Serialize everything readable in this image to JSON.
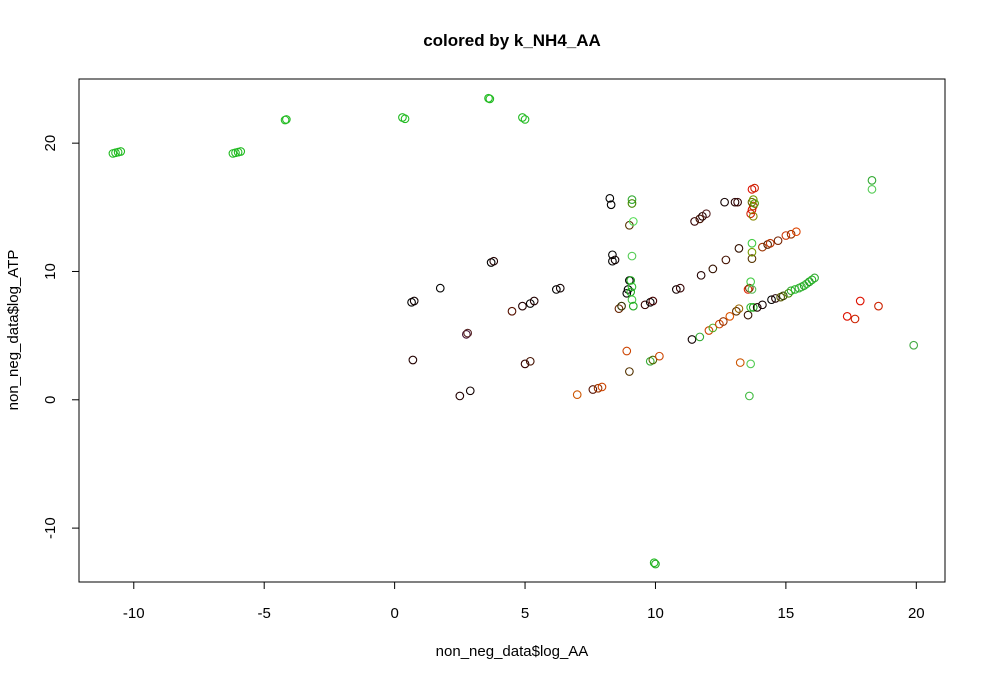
{
  "chart_data": {
    "type": "scatter",
    "title": "colored by k_NH4_AA",
    "xlabel": "non_neg_data$log_AA",
    "ylabel": "non_neg_data$log_ATP",
    "xlim": [
      -12.1,
      21.1
    ],
    "ylim": [
      -14.2,
      25.0
    ],
    "x_ticks": [
      -10,
      -5,
      0,
      5,
      10,
      15,
      20
    ],
    "y_ticks": [
      -10,
      0,
      10,
      20
    ],
    "x_tick_labels": [
      "-10",
      "-5",
      "0",
      "5",
      "10",
      "15",
      "20"
    ],
    "y_tick_labels": [
      "-10",
      "0",
      "10",
      "20"
    ],
    "marker": "open-circle",
    "grid": false,
    "legend": "none",
    "points": [
      {
        "x": -10.8,
        "y": 19.2,
        "color": "#22bb22"
      },
      {
        "x": -10.7,
        "y": 19.25,
        "color": "#22bb22"
      },
      {
        "x": -10.6,
        "y": 19.3,
        "color": "#22bb22"
      },
      {
        "x": -10.5,
        "y": 19.35,
        "color": "#22bb22"
      },
      {
        "x": -6.2,
        "y": 19.2,
        "color": "#22bb22"
      },
      {
        "x": -6.1,
        "y": 19.25,
        "color": "#22bb22"
      },
      {
        "x": -6.0,
        "y": 19.3,
        "color": "#22bb22"
      },
      {
        "x": -5.9,
        "y": 19.35,
        "color": "#22bb22"
      },
      {
        "x": -4.2,
        "y": 21.8,
        "color": "#22bb22"
      },
      {
        "x": -4.15,
        "y": 21.85,
        "color": "#22bb22"
      },
      {
        "x": 0.3,
        "y": 22.0,
        "color": "#22bb22"
      },
      {
        "x": 0.4,
        "y": 21.9,
        "color": "#22bb22"
      },
      {
        "x": 3.6,
        "y": 23.5,
        "color": "#22bb22"
      },
      {
        "x": 3.65,
        "y": 23.45,
        "color": "#22bb22"
      },
      {
        "x": 4.9,
        "y": 22.0,
        "color": "#22bb22"
      },
      {
        "x": 5.0,
        "y": 21.85,
        "color": "#22bb22"
      },
      {
        "x": 0.65,
        "y": 7.6,
        "color": "#000000"
      },
      {
        "x": 0.75,
        "y": 7.7,
        "color": "#110000"
      },
      {
        "x": 0.7,
        "y": 3.1,
        "color": "#220000"
      },
      {
        "x": 1.75,
        "y": 8.7,
        "color": "#000000"
      },
      {
        "x": 2.5,
        "y": 0.3,
        "color": "#220000"
      },
      {
        "x": 2.75,
        "y": 5.1,
        "color": "#441133"
      },
      {
        "x": 2.8,
        "y": 5.2,
        "color": "#552222"
      },
      {
        "x": 2.9,
        "y": 0.7,
        "color": "#110000"
      },
      {
        "x": 3.7,
        "y": 10.7,
        "color": "#000000"
      },
      {
        "x": 3.8,
        "y": 10.8,
        "color": "#220000"
      },
      {
        "x": 4.5,
        "y": 6.9,
        "color": "#551100"
      },
      {
        "x": 4.9,
        "y": 7.3,
        "color": "#220000"
      },
      {
        "x": 5.0,
        "y": 2.8,
        "color": "#330000"
      },
      {
        "x": 5.2,
        "y": 3.0,
        "color": "#441100"
      },
      {
        "x": 5.2,
        "y": 7.5,
        "color": "#000000"
      },
      {
        "x": 5.35,
        "y": 7.7,
        "color": "#220000"
      },
      {
        "x": 6.2,
        "y": 8.6,
        "color": "#000000"
      },
      {
        "x": 6.35,
        "y": 8.7,
        "color": "#110000"
      },
      {
        "x": 7.0,
        "y": 0.4,
        "color": "#cc5500"
      },
      {
        "x": 7.6,
        "y": 0.8,
        "color": "#551100"
      },
      {
        "x": 7.8,
        "y": 0.9,
        "color": "#993300"
      },
      {
        "x": 7.95,
        "y": 1.0,
        "color": "#cc4400"
      },
      {
        "x": 8.25,
        "y": 15.7,
        "color": "#000000"
      },
      {
        "x": 8.3,
        "y": 15.2,
        "color": "#000000"
      },
      {
        "x": 8.35,
        "y": 11.3,
        "color": "#000000"
      },
      {
        "x": 8.35,
        "y": 10.8,
        "color": "#000000"
      },
      {
        "x": 8.45,
        "y": 10.9,
        "color": "#110000"
      },
      {
        "x": 8.6,
        "y": 7.1,
        "color": "#662200"
      },
      {
        "x": 8.7,
        "y": 7.3,
        "color": "#333300"
      },
      {
        "x": 8.9,
        "y": 8.3,
        "color": "#000000"
      },
      {
        "x": 8.95,
        "y": 8.6,
        "color": "#000000"
      },
      {
        "x": 9.0,
        "y": 9.3,
        "color": "#000000"
      },
      {
        "x": 8.9,
        "y": 3.8,
        "color": "#cc4400"
      },
      {
        "x": 9.0,
        "y": 2.2,
        "color": "#553300"
      },
      {
        "x": 9.0,
        "y": 13.6,
        "color": "#553300"
      },
      {
        "x": 9.1,
        "y": 15.6,
        "color": "#33aa33"
      },
      {
        "x": 9.1,
        "y": 15.3,
        "color": "#448800"
      },
      {
        "x": 9.15,
        "y": 13.9,
        "color": "#55dd55"
      },
      {
        "x": 9.1,
        "y": 11.2,
        "color": "#55cc55"
      },
      {
        "x": 9.05,
        "y": 9.3,
        "color": "#22aa22"
      },
      {
        "x": 9.1,
        "y": 8.8,
        "color": "#33bb33"
      },
      {
        "x": 9.05,
        "y": 8.4,
        "color": "#22aa22"
      },
      {
        "x": 9.1,
        "y": 7.8,
        "color": "#44cc44"
      },
      {
        "x": 9.15,
        "y": 7.3,
        "color": "#22aa22"
      },
      {
        "x": 9.6,
        "y": 7.4,
        "color": "#330000"
      },
      {
        "x": 9.8,
        "y": 7.6,
        "color": "#000000"
      },
      {
        "x": 9.9,
        "y": 7.7,
        "color": "#440000"
      },
      {
        "x": 9.8,
        "y": 3.0,
        "color": "#33aa33"
      },
      {
        "x": 9.9,
        "y": 3.1,
        "color": "#556600"
      },
      {
        "x": 10.15,
        "y": 3.4,
        "color": "#cc4400"
      },
      {
        "x": 9.95,
        "y": -12.7,
        "color": "#22bb22"
      },
      {
        "x": 10.0,
        "y": -12.8,
        "color": "#22aa22"
      },
      {
        "x": 10.8,
        "y": 8.6,
        "color": "#110000"
      },
      {
        "x": 10.95,
        "y": 8.7,
        "color": "#330000"
      },
      {
        "x": 11.4,
        "y": 4.7,
        "color": "#110000"
      },
      {
        "x": 11.7,
        "y": 4.9,
        "color": "#33aa33"
      },
      {
        "x": 11.5,
        "y": 13.9,
        "color": "#330000"
      },
      {
        "x": 11.7,
        "y": 14.1,
        "color": "#441100"
      },
      {
        "x": 11.8,
        "y": 14.3,
        "color": "#220000"
      },
      {
        "x": 11.95,
        "y": 14.5,
        "color": "#552222"
      },
      {
        "x": 11.75,
        "y": 9.7,
        "color": "#220000"
      },
      {
        "x": 12.2,
        "y": 10.2,
        "color": "#331100"
      },
      {
        "x": 12.7,
        "y": 10.9,
        "color": "#441100"
      },
      {
        "x": 12.05,
        "y": 5.4,
        "color": "#cc4400"
      },
      {
        "x": 12.2,
        "y": 5.6,
        "color": "#55aa22"
      },
      {
        "x": 12.45,
        "y": 5.9,
        "color": "#cc4400"
      },
      {
        "x": 12.6,
        "y": 6.1,
        "color": "#993300"
      },
      {
        "x": 12.85,
        "y": 6.5,
        "color": "#dd5500"
      },
      {
        "x": 13.1,
        "y": 6.9,
        "color": "#663300"
      },
      {
        "x": 13.2,
        "y": 7.1,
        "color": "#996600"
      },
      {
        "x": 12.65,
        "y": 15.4,
        "color": "#110000"
      },
      {
        "x": 13.05,
        "y": 15.4,
        "color": "#220000"
      },
      {
        "x": 13.15,
        "y": 15.4,
        "color": "#330000"
      },
      {
        "x": 13.2,
        "y": 11.8,
        "color": "#331100"
      },
      {
        "x": 13.25,
        "y": 2.9,
        "color": "#cc5500"
      },
      {
        "x": 13.55,
        "y": 6.6,
        "color": "#331100"
      },
      {
        "x": 13.55,
        "y": 8.6,
        "color": "#dd2200"
      },
      {
        "x": 13.6,
        "y": 8.7,
        "color": "#773300"
      },
      {
        "x": 13.65,
        "y": 9.2,
        "color": "#44cc44"
      },
      {
        "x": 13.7,
        "y": 8.6,
        "color": "#55bb55"
      },
      {
        "x": 13.65,
        "y": 7.2,
        "color": "#33bb33"
      },
      {
        "x": 13.75,
        "y": 7.2,
        "color": "#22aa22"
      },
      {
        "x": 13.65,
        "y": 2.8,
        "color": "#55cc55"
      },
      {
        "x": 13.6,
        "y": 0.3,
        "color": "#44bb44"
      },
      {
        "x": 13.7,
        "y": 11.0,
        "color": "#553300"
      },
      {
        "x": 13.7,
        "y": 11.5,
        "color": "#779900"
      },
      {
        "x": 13.7,
        "y": 12.2,
        "color": "#44cc44"
      },
      {
        "x": 13.65,
        "y": 14.5,
        "color": "#cc2200"
      },
      {
        "x": 13.7,
        "y": 14.8,
        "color": "#dd1100"
      },
      {
        "x": 13.75,
        "y": 15.1,
        "color": "#bb3300"
      },
      {
        "x": 13.7,
        "y": 15.4,
        "color": "#666600"
      },
      {
        "x": 13.75,
        "y": 15.6,
        "color": "#779900"
      },
      {
        "x": 13.8,
        "y": 15.3,
        "color": "#559900"
      },
      {
        "x": 13.75,
        "y": 14.3,
        "color": "#888800"
      },
      {
        "x": 13.7,
        "y": 16.4,
        "color": "#dd1100"
      },
      {
        "x": 13.8,
        "y": 16.5,
        "color": "#cc2200"
      },
      {
        "x": 13.9,
        "y": 7.2,
        "color": "#220000"
      },
      {
        "x": 14.1,
        "y": 7.4,
        "color": "#110000"
      },
      {
        "x": 14.1,
        "y": 11.9,
        "color": "#993300"
      },
      {
        "x": 14.3,
        "y": 12.1,
        "color": "#552200"
      },
      {
        "x": 14.4,
        "y": 12.2,
        "color": "#bb3300"
      },
      {
        "x": 14.7,
        "y": 12.4,
        "color": "#772200"
      },
      {
        "x": 14.45,
        "y": 7.8,
        "color": "#000000"
      },
      {
        "x": 14.6,
        "y": 7.9,
        "color": "#220000"
      },
      {
        "x": 14.8,
        "y": 8.0,
        "color": "#555500"
      },
      {
        "x": 14.9,
        "y": 8.1,
        "color": "#334400"
      },
      {
        "x": 15.0,
        "y": 12.8,
        "color": "#cc3300"
      },
      {
        "x": 15.2,
        "y": 12.9,
        "color": "#993300"
      },
      {
        "x": 15.4,
        "y": 13.1,
        "color": "#dd4400"
      },
      {
        "x": 15.1,
        "y": 8.3,
        "color": "#448800"
      },
      {
        "x": 15.2,
        "y": 8.5,
        "color": "#33aa33"
      },
      {
        "x": 15.35,
        "y": 8.6,
        "color": "#22bb22"
      },
      {
        "x": 15.5,
        "y": 8.7,
        "color": "#33aa33"
      },
      {
        "x": 15.6,
        "y": 8.8,
        "color": "#44bb44"
      },
      {
        "x": 15.7,
        "y": 8.9,
        "color": "#22aa22"
      },
      {
        "x": 15.8,
        "y": 9.05,
        "color": "#33bb33"
      },
      {
        "x": 15.9,
        "y": 9.2,
        "color": "#229922"
      },
      {
        "x": 16.0,
        "y": 9.35,
        "color": "#22bb22"
      },
      {
        "x": 16.1,
        "y": 9.5,
        "color": "#33aa33"
      },
      {
        "x": 17.35,
        "y": 6.5,
        "color": "#dd1100"
      },
      {
        "x": 17.65,
        "y": 6.3,
        "color": "#cc2200"
      },
      {
        "x": 17.85,
        "y": 7.7,
        "color": "#dd1100"
      },
      {
        "x": 18.55,
        "y": 7.3,
        "color": "#cc2200"
      },
      {
        "x": 18.3,
        "y": 17.1,
        "color": "#33aa33"
      },
      {
        "x": 18.3,
        "y": 16.4,
        "color": "#55cc55"
      },
      {
        "x": 19.9,
        "y": 4.25,
        "color": "#44aa44"
      }
    ]
  }
}
